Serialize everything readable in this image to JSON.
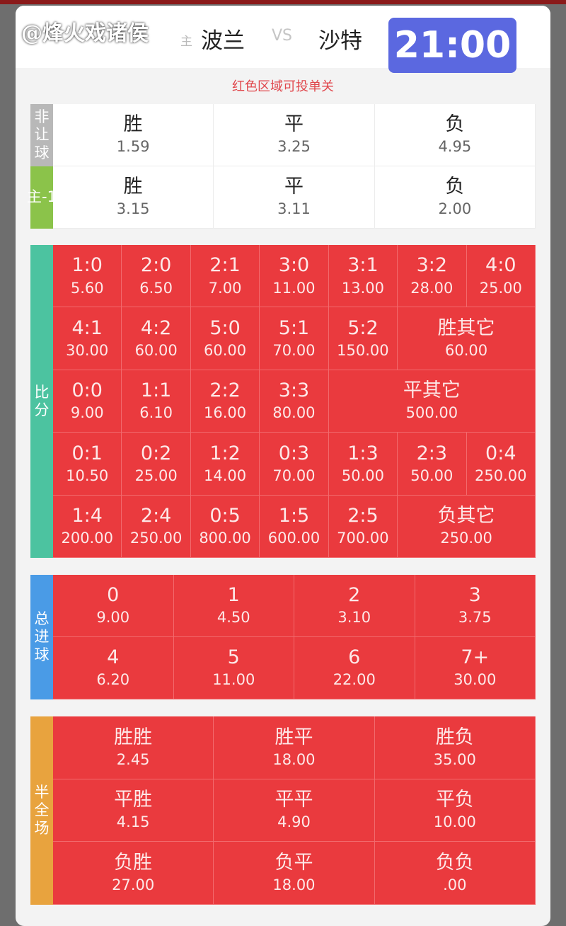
{
  "header": {
    "home_tag": "主",
    "home": "波兰",
    "vs": "VS",
    "away": "沙特",
    "time": "21:00"
  },
  "notice": "红色区域可投单关",
  "colors": {
    "red": "#ea3a3e",
    "time_badge": "#5b68e0",
    "label_gray": "#b8b8b8",
    "label_green": "#8bc34a",
    "label_teal": "#4cc3a0",
    "label_blue": "#4a9be6",
    "label_orange": "#e8a33e"
  },
  "no_handicap": {
    "label": "非让球",
    "items": [
      {
        "k": "胜",
        "v": "1.59"
      },
      {
        "k": "平",
        "v": "3.25"
      },
      {
        "k": "负",
        "v": "4.95"
      }
    ]
  },
  "handicap": {
    "label": "主-1",
    "items": [
      {
        "k": "胜",
        "v": "3.15"
      },
      {
        "k": "平",
        "v": "3.11"
      },
      {
        "k": "负",
        "v": "2.00"
      }
    ]
  },
  "score": {
    "label": "比分",
    "items": [
      {
        "k": "1:0",
        "v": "5.60"
      },
      {
        "k": "2:0",
        "v": "6.50"
      },
      {
        "k": "2:1",
        "v": "7.00"
      },
      {
        "k": "3:0",
        "v": "11.00"
      },
      {
        "k": "3:1",
        "v": "13.00"
      },
      {
        "k": "3:2",
        "v": "28.00"
      },
      {
        "k": "4:0",
        "v": "25.00"
      },
      {
        "k": "4:1",
        "v": "30.00"
      },
      {
        "k": "4:2",
        "v": "60.00"
      },
      {
        "k": "5:0",
        "v": "60.00"
      },
      {
        "k": "5:1",
        "v": "70.00"
      },
      {
        "k": "5:2",
        "v": "150.00"
      },
      {
        "k": "胜其它",
        "v": "60.00",
        "span": 2
      },
      {
        "k": "0:0",
        "v": "9.00"
      },
      {
        "k": "1:1",
        "v": "6.10"
      },
      {
        "k": "2:2",
        "v": "16.00"
      },
      {
        "k": "3:3",
        "v": "80.00"
      },
      {
        "k": "平其它",
        "v": "500.00",
        "span": 3
      },
      {
        "k": "0:1",
        "v": "10.50"
      },
      {
        "k": "0:2",
        "v": "25.00"
      },
      {
        "k": "1:2",
        "v": "14.00"
      },
      {
        "k": "0:3",
        "v": "70.00"
      },
      {
        "k": "1:3",
        "v": "50.00"
      },
      {
        "k": "2:3",
        "v": "50.00"
      },
      {
        "k": "0:4",
        "v": "250.00"
      },
      {
        "k": "1:4",
        "v": "200.00"
      },
      {
        "k": "2:4",
        "v": "250.00"
      },
      {
        "k": "0:5",
        "v": "800.00"
      },
      {
        "k": "1:5",
        "v": "600.00"
      },
      {
        "k": "2:5",
        "v": "700.00"
      },
      {
        "k": "负其它",
        "v": "250.00",
        "span": 2
      }
    ]
  },
  "total_goals": {
    "label": "总进球",
    "items": [
      {
        "k": "0",
        "v": "9.00"
      },
      {
        "k": "1",
        "v": "4.50"
      },
      {
        "k": "2",
        "v": "3.10"
      },
      {
        "k": "3",
        "v": "3.75"
      },
      {
        "k": "4",
        "v": "6.20"
      },
      {
        "k": "5",
        "v": "11.00"
      },
      {
        "k": "6",
        "v": "22.00"
      },
      {
        "k": "7+",
        "v": "30.00"
      }
    ]
  },
  "half_full": {
    "label": "半全场",
    "items": [
      {
        "k": "胜胜",
        "v": "2.45"
      },
      {
        "k": "胜平",
        "v": "18.00"
      },
      {
        "k": "胜负",
        "v": "35.00"
      },
      {
        "k": "平胜",
        "v": "4.15"
      },
      {
        "k": "平平",
        "v": "4.90"
      },
      {
        "k": "平负",
        "v": "10.00"
      },
      {
        "k": "负胜",
        "v": "27.00"
      },
      {
        "k": "负平",
        "v": "18.00"
      },
      {
        "k": "负负",
        "v": ".00"
      }
    ]
  },
  "watermark": "@烽火戏诸侯"
}
